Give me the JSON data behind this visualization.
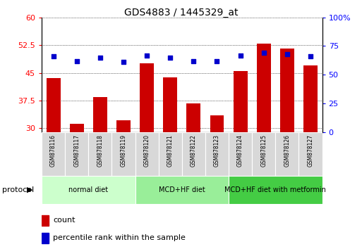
{
  "title": "GDS4883 / 1445329_at",
  "samples": [
    "GSM878116",
    "GSM878117",
    "GSM878118",
    "GSM878119",
    "GSM878120",
    "GSM878121",
    "GSM878122",
    "GSM878123",
    "GSM878124",
    "GSM878125",
    "GSM878126",
    "GSM878127"
  ],
  "counts": [
    43.5,
    31.2,
    38.5,
    32.2,
    47.5,
    43.8,
    36.8,
    33.5,
    45.5,
    53.0,
    51.5,
    47.0
  ],
  "percentile_ranks": [
    66,
    62,
    65,
    61,
    67,
    65,
    62,
    62,
    67,
    69,
    68,
    66
  ],
  "bar_color": "#cc0000",
  "dot_color": "#0000cc",
  "ylim_left": [
    29,
    60
  ],
  "ylim_right": [
    0,
    100
  ],
  "yticks_left": [
    30,
    37.5,
    45,
    52.5,
    60
  ],
  "yticks_right": [
    0,
    25,
    50,
    75,
    100
  ],
  "groups": [
    {
      "label": "normal diet",
      "start": 0,
      "end": 4,
      "color": "#ccffcc"
    },
    {
      "label": "MCD+HF diet",
      "start": 4,
      "end": 8,
      "color": "#99ee99"
    },
    {
      "label": "MCD+HF diet with metformin",
      "start": 8,
      "end": 12,
      "color": "#44cc44"
    }
  ],
  "legend_count_label": "count",
  "legend_pct_label": "percentile rank within the sample",
  "protocol_label": "protocol"
}
